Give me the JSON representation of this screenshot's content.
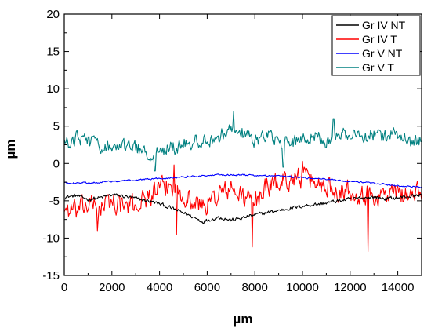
{
  "chart_data": {
    "type": "line",
    "title": "",
    "xlabel": "µm",
    "ylabel": "µm",
    "xlim": [
      0,
      15000
    ],
    "ylim": [
      -15,
      20
    ],
    "xticks": [
      0,
      2000,
      4000,
      6000,
      8000,
      10000,
      12000,
      14000
    ],
    "yticks": [
      -15,
      -10,
      -5,
      0,
      5,
      10,
      15,
      20
    ],
    "grid": false,
    "legend_position": "top-right",
    "series": [
      {
        "name": "Gr IV NT",
        "color": "#000000",
        "x": [
          0,
          500,
          1000,
          1500,
          2000,
          2500,
          3000,
          3500,
          4000,
          4500,
          5000,
          5500,
          5800,
          6000,
          6500,
          7000,
          7500,
          8000,
          8500,
          9000,
          9500,
          10000,
          10500,
          11000,
          11500,
          12000,
          12500,
          13000,
          13500,
          14000,
          14500,
          15000
        ],
        "values": [
          -4.5,
          -4.3,
          -4.8,
          -4.6,
          -4.2,
          -4.4,
          -4.7,
          -5.0,
          -5.4,
          -6.0,
          -6.6,
          -7.3,
          -7.8,
          -7.6,
          -7.2,
          -7.6,
          -7.3,
          -6.9,
          -6.6,
          -6.3,
          -6.0,
          -5.7,
          -5.5,
          -5.3,
          -5.0,
          -4.8,
          -4.6,
          -4.5,
          -4.7,
          -4.6,
          -4.4,
          -4.2
        ],
        "noise": 0.35
      },
      {
        "name": "Gr IV T",
        "color": "#ff0000",
        "x": [
          0,
          500,
          1000,
          1500,
          2000,
          2500,
          3000,
          3500,
          4000,
          4500,
          5000,
          5500,
          6000,
          6500,
          7000,
          7500,
          8000,
          8500,
          9000,
          9500,
          10000,
          10500,
          11000,
          11500,
          12000,
          12500,
          13000,
          13500,
          14000,
          14500,
          15000
        ],
        "values": [
          -6.0,
          -6.5,
          -5.5,
          -6.0,
          -5.0,
          -5.8,
          -5.5,
          -4.5,
          -3.5,
          -3.0,
          -4.0,
          -5.5,
          -5.5,
          -4.0,
          -3.5,
          -4.5,
          -5.0,
          -3.0,
          -2.5,
          -2.0,
          -2.0,
          -2.5,
          -3.0,
          -3.5,
          -3.5,
          -4.0,
          -4.5,
          -4.0,
          -4.0,
          -4.2,
          -4.0
        ],
        "noise": 2.0,
        "spikes": [
          {
            "x": 7900,
            "y": -11.2
          },
          {
            "x": 12750,
            "y": -11.8
          },
          {
            "x": 4700,
            "y": -9.5
          },
          {
            "x": 1400,
            "y": -9.0
          },
          {
            "x": 10000,
            "y": 0.3
          },
          {
            "x": 4600,
            "y": -0.2
          }
        ]
      },
      {
        "name": "Gr V NT",
        "color": "#0000ff",
        "x": [
          0,
          1000,
          2000,
          3000,
          4000,
          5000,
          6000,
          7000,
          8000,
          9000,
          10000,
          11000,
          12000,
          13000,
          14000,
          15000
        ],
        "values": [
          -2.6,
          -2.6,
          -2.4,
          -2.2,
          -2.0,
          -1.8,
          -1.6,
          -1.5,
          -1.6,
          -1.7,
          -1.9,
          -2.1,
          -2.4,
          -2.6,
          -3.0,
          -3.2
        ],
        "noise": 0.15
      },
      {
        "name": "Gr V T",
        "color": "#008080",
        "x": [
          0,
          500,
          1000,
          1500,
          2000,
          2500,
          3000,
          3500,
          4000,
          4500,
          5000,
          5500,
          6000,
          6500,
          7000,
          7500,
          8000,
          8500,
          9000,
          9500,
          10000,
          10500,
          11000,
          11500,
          12000,
          12500,
          13000,
          13500,
          14000,
          14500,
          15000
        ],
        "values": [
          2.5,
          3.5,
          3.0,
          2.5,
          2.0,
          2.5,
          2.0,
          1.5,
          1.5,
          2.0,
          2.5,
          3.0,
          3.0,
          3.5,
          5.0,
          4.0,
          3.0,
          4.0,
          3.0,
          2.5,
          3.5,
          3.5,
          3.0,
          4.0,
          4.0,
          3.5,
          4.0,
          3.5,
          4.0,
          3.0,
          3.0
        ],
        "noise": 1.3,
        "spikes": [
          {
            "x": 7100,
            "y": 7.0
          },
          {
            "x": 9200,
            "y": -0.5
          },
          {
            "x": 3800,
            "y": -1.0
          },
          {
            "x": 11300,
            "y": 6.0
          }
        ]
      }
    ]
  }
}
